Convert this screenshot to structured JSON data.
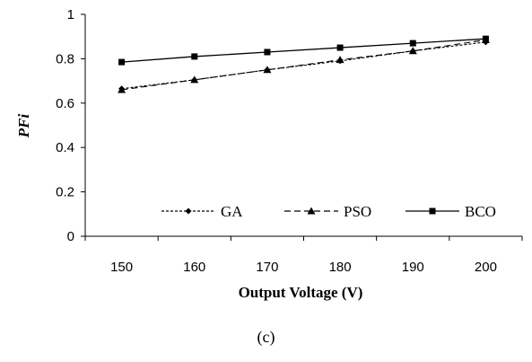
{
  "caption": "(c)",
  "chart_data": {
    "type": "line",
    "title": "",
    "xlabel": "Output Voltage (V)",
    "ylabel": "PFi",
    "x": [
      150,
      160,
      170,
      180,
      190,
      200
    ],
    "xlim": [
      145,
      205
    ],
    "ylim": [
      0,
      1
    ],
    "xticks": [
      150,
      160,
      170,
      180,
      190,
      200
    ],
    "yticks": [
      0,
      0.2,
      0.4,
      0.6,
      0.8,
      1
    ],
    "x_tick_labels": [
      "150",
      "160",
      "170",
      "180",
      "190",
      "200"
    ],
    "y_tick_labels": [
      "0",
      "0.2",
      "0.4",
      "0.6",
      "0.8",
      "1"
    ],
    "grid": false,
    "legend_position": "inside-bottom",
    "series": [
      {
        "name": "GA",
        "values": [
          0.665,
          0.705,
          0.75,
          0.79,
          0.835,
          0.875
        ],
        "marker": "diamond",
        "line_style": "dotted",
        "color": "#000000"
      },
      {
        "name": "PSO",
        "values": [
          0.66,
          0.705,
          0.75,
          0.795,
          0.835,
          0.885
        ],
        "marker": "triangle",
        "line_style": "dashed",
        "color": "#000000"
      },
      {
        "name": "BCO",
        "values": [
          0.785,
          0.81,
          0.83,
          0.85,
          0.87,
          0.89
        ],
        "marker": "square",
        "line_style": "solid",
        "color": "#000000"
      }
    ]
  }
}
